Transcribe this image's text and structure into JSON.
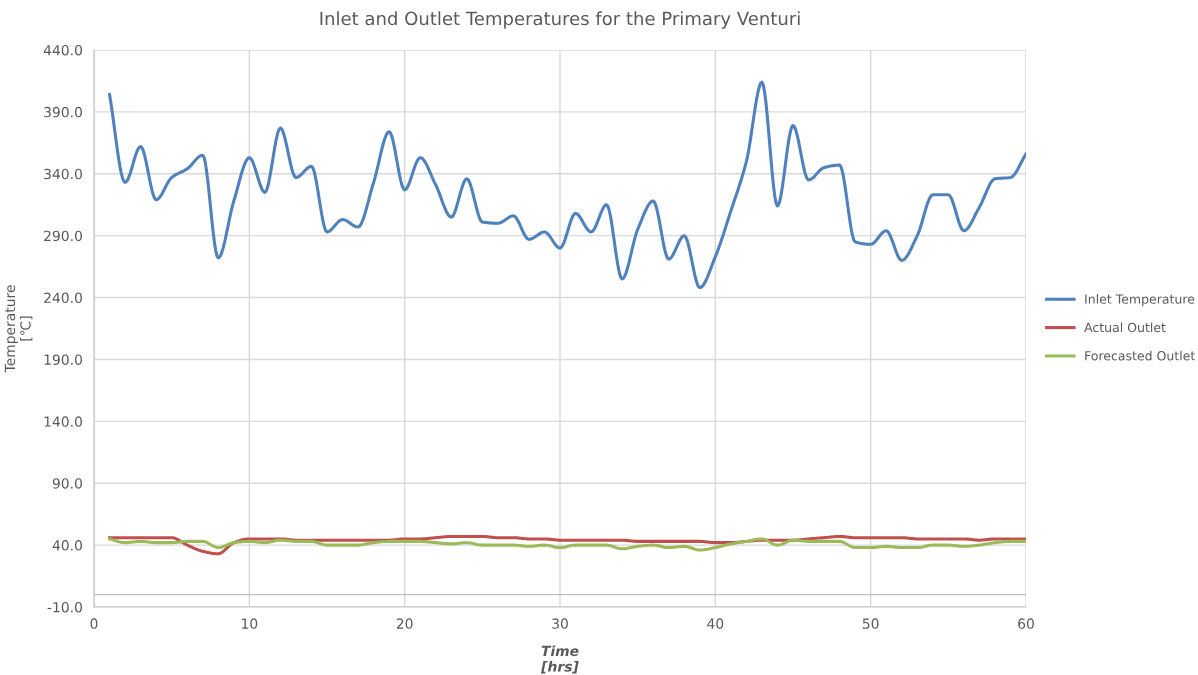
{
  "chart_data": {
    "type": "line",
    "title": "Inlet and Outlet Temperatures for the Primary Venturi",
    "xlabel": "Time\n[hrs]",
    "ylabel": "Temperature\n[℃]",
    "x": [
      1,
      2,
      3,
      4,
      5,
      6,
      7,
      8,
      9,
      10,
      11,
      12,
      13,
      14,
      15,
      16,
      17,
      18,
      19,
      20,
      21,
      22,
      23,
      24,
      25,
      26,
      27,
      28,
      29,
      30,
      31,
      32,
      33,
      34,
      35,
      36,
      37,
      38,
      39,
      40,
      41,
      42,
      43,
      44,
      45,
      46,
      47,
      48,
      49,
      50,
      51,
      52,
      53,
      54,
      55,
      56,
      57,
      58,
      59,
      60
    ],
    "series": [
      {
        "name": "Inlet Temperature",
        "color": "#4f81bd",
        "values": [
          404,
          333,
          362,
          319,
          337,
          344,
          355,
          272,
          318,
          353,
          325,
          377,
          337,
          346,
          293,
          303,
          297,
          333,
          374,
          327,
          353,
          331,
          305,
          336,
          301,
          300,
          306,
          287,
          293,
          280,
          308,
          293,
          315,
          255,
          295,
          318,
          271,
          290,
          248,
          273,
          310,
          350,
          414,
          314,
          379,
          335,
          345,
          347,
          285,
          283,
          294,
          270,
          290,
          323,
          323,
          294,
          313,
          336,
          337,
          356
        ]
      },
      {
        "name": "Actual Outlet",
        "color": "#c0504d",
        "values": [
          46,
          46,
          46,
          46,
          46,
          40,
          35,
          33,
          42,
          45,
          45,
          45,
          44,
          44,
          44,
          44,
          44,
          44,
          44,
          45,
          45,
          46,
          47,
          47,
          47,
          46,
          46,
          45,
          45,
          44,
          44,
          44,
          44,
          44,
          43,
          43,
          43,
          43,
          43,
          42,
          42,
          43,
          44,
          44,
          44,
          45,
          46,
          47,
          46,
          46,
          46,
          46,
          45,
          45,
          45,
          45,
          44,
          45,
          45,
          45
        ]
      },
      {
        "name": "Forecasted Outlet",
        "color": "#9bbb59",
        "values": [
          45,
          42,
          43,
          42,
          42,
          43,
          43,
          38,
          42,
          43,
          42,
          44,
          43,
          43,
          40,
          40,
          40,
          42,
          43,
          43,
          43,
          42,
          41,
          42,
          40,
          40,
          40,
          39,
          40,
          38,
          40,
          40,
          40,
          37,
          39,
          40,
          38,
          39,
          36,
          38,
          41,
          43,
          45,
          40,
          44,
          43,
          43,
          43,
          38,
          38,
          39,
          38,
          38,
          40,
          40,
          39,
          40,
          42,
          43,
          43
        ]
      }
    ],
    "xlim": [
      0,
      60
    ],
    "xticks": [
      0,
      10,
      20,
      30,
      40,
      50,
      60
    ],
    "ylim": [
      -10,
      440
    ],
    "yticks": [
      {
        "value": -10,
        "label": "-10.0"
      },
      {
        "value": 40,
        "label": "40.0"
      },
      {
        "value": 90,
        "label": "90.0"
      },
      {
        "value": 140,
        "label": "140.0"
      },
      {
        "value": 190,
        "label": "190.0"
      },
      {
        "value": 240,
        "label": "240.0"
      },
      {
        "value": 290,
        "label": "290.0"
      },
      {
        "value": 340,
        "label": "340.0"
      },
      {
        "value": 390,
        "label": "390.0"
      },
      {
        "value": 440,
        "label": "440.0"
      }
    ],
    "ref_lines": [
      {
        "axis": "y",
        "value": 0,
        "color": "#bfbfbf"
      }
    ],
    "grid": true,
    "legend": "right",
    "marker": "none",
    "line_style": "solid"
  }
}
